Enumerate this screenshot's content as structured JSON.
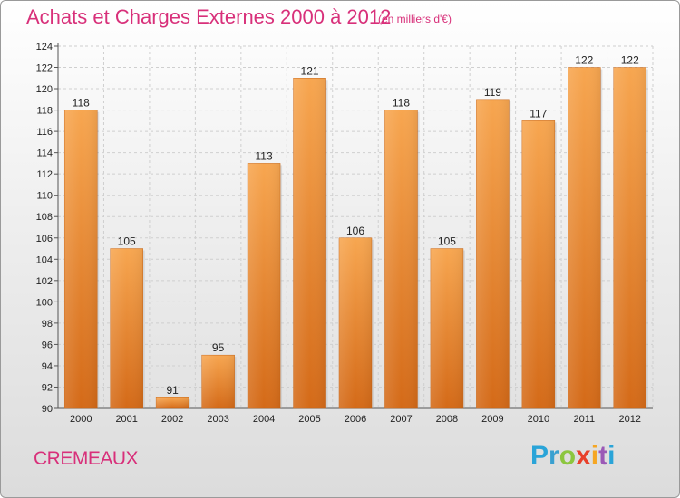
{
  "title": "Achats et Charges Externes 2000 à 2012",
  "unit": "(en milliers d'€)",
  "commune": "CREMEAUX",
  "logo": "Proxiti",
  "colors": {
    "title": "#d8307a",
    "bar_top": "#f7a24f",
    "bar_bottom": "#d86b1a"
  },
  "chart_data": {
    "type": "bar",
    "categories": [
      "2000",
      "2001",
      "2002",
      "2003",
      "2004",
      "2005",
      "2006",
      "2007",
      "2008",
      "2009",
      "2010",
      "2011",
      "2012"
    ],
    "values": [
      118,
      105,
      91,
      95,
      113,
      121,
      106,
      118,
      105,
      119,
      117,
      122,
      122
    ],
    "ylim": [
      90,
      124
    ],
    "yticks": [
      90,
      92,
      94,
      96,
      98,
      100,
      102,
      104,
      106,
      108,
      110,
      112,
      114,
      116,
      118,
      120,
      122,
      124
    ],
    "grid": true,
    "xlabel": "",
    "ylabel": ""
  }
}
